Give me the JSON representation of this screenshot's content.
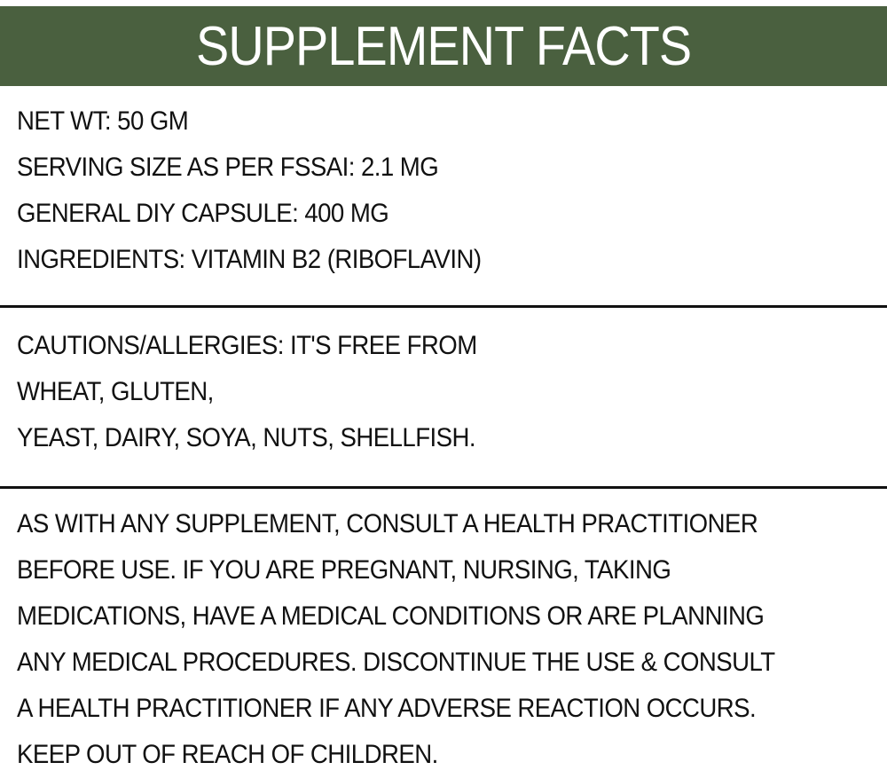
{
  "header": {
    "title": "SUPPLEMENT FACTS",
    "background_color": "#4a603f"
  },
  "product_info": [
    "NET WT: 50 GM",
    "SERVING SIZE AS PER FSSAI: 2.1 MG",
    "GENERAL DIY CAPSULE: 400 MG",
    "INGREDIENTS: VITAMIN B2 (RIBOFLAVIN)"
  ],
  "cautions": [
    "CAUTIONS/ALLERGIES: IT'S FREE FROM",
    "WHEAT, GLUTEN,",
    "YEAST, DAIRY, SOYA, NUTS, SHELLFISH."
  ],
  "warning": [
    "AS WITH ANY SUPPLEMENT, CONSULT A HEALTH PRACTITIONER",
    "BEFORE USE. IF YOU ARE PREGNANT, NURSING, TAKING",
    "MEDICATIONS, HAVE A MEDICAL CONDITIONS OR ARE PLANNING",
    "ANY MEDICAL PROCEDURES. DISCONTINUE THE USE & CONSULT",
    "A HEALTH PRACTITIONER IF ANY ADVERSE REACTION OCCURS.",
    "KEEP OUT OF REACH OF CHILDREN."
  ]
}
